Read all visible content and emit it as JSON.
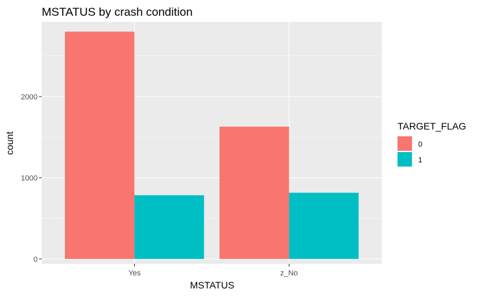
{
  "chart_data": {
    "type": "bar",
    "title": "MSTATUS by crash condition",
    "xlabel": "MSTATUS",
    "ylabel": "count",
    "categories": [
      "Yes",
      "z_No"
    ],
    "series": [
      {
        "name": "0",
        "values": [
          2800,
          1630
        ]
      },
      {
        "name": "1",
        "values": [
          785,
          815
        ]
      }
    ],
    "ylim": [
      -60,
      2920
    ],
    "yticks": [
      0,
      1000,
      2000
    ],
    "legend": {
      "title": "TARGET_FLAG",
      "position": "right"
    },
    "grid": true,
    "colors": {
      "0": "#F8766D",
      "1": "#00BFC4",
      "panel": "#EBEBEB",
      "grid": "#FFFFFF"
    }
  }
}
